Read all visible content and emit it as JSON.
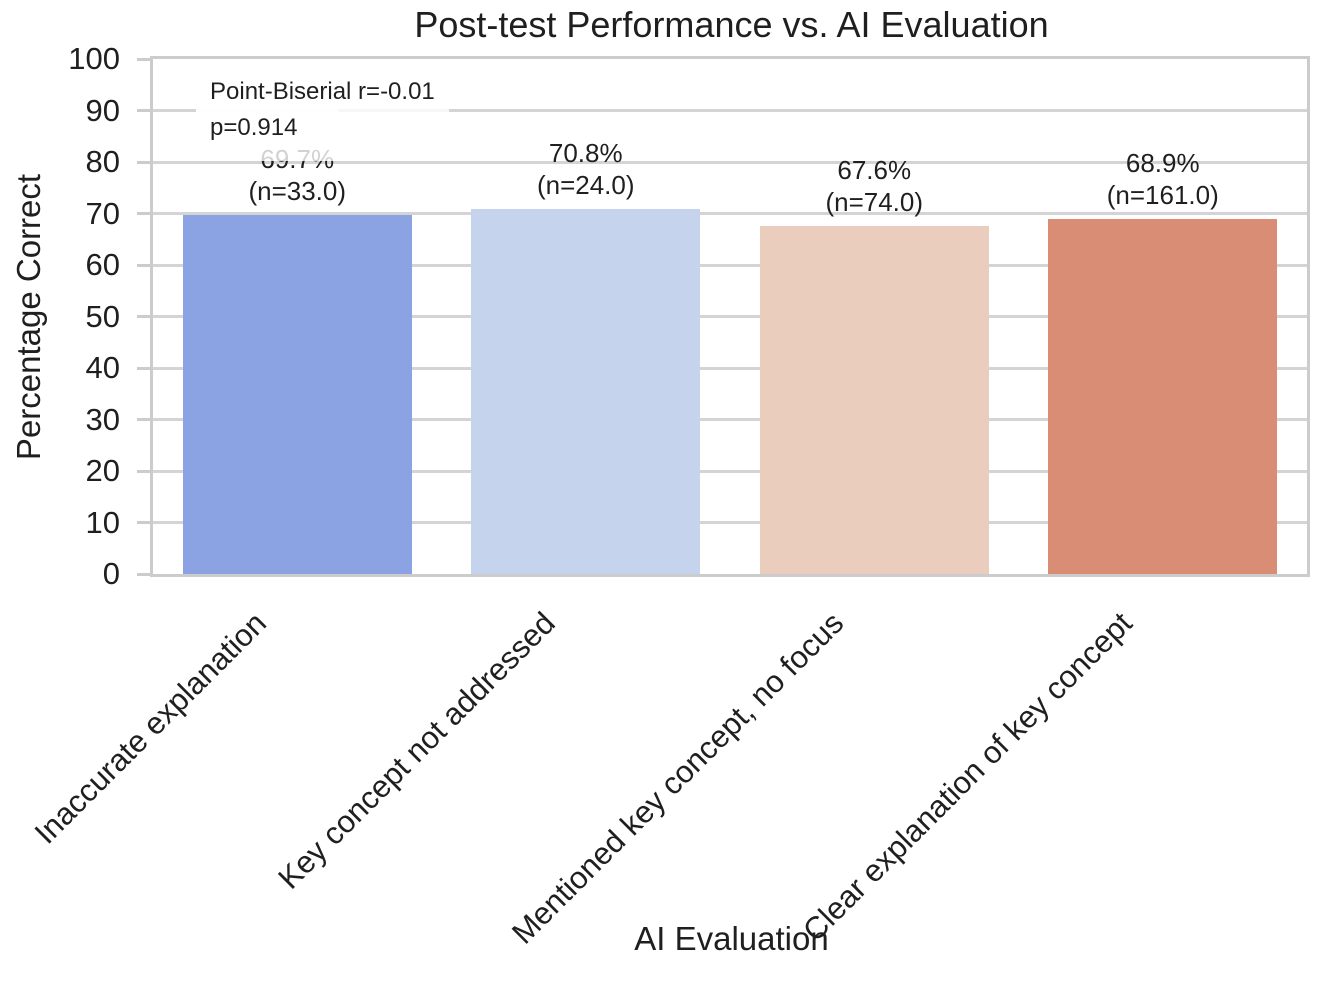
{
  "chart_data": {
    "type": "bar",
    "title": "Post-test Performance vs. AI Evaluation",
    "xlabel": "AI Evaluation",
    "ylabel": "Percentage Correct",
    "categories": [
      "Inaccurate explanation",
      "Key concept not addressed",
      "Mentioned key concept, no focus",
      "Clear explanation of key concept"
    ],
    "values": [
      69.7,
      70.8,
      67.6,
      68.9
    ],
    "counts": [
      33.0,
      24.0,
      74.0,
      161.0
    ],
    "value_labels": [
      "69.7%",
      "70.8%",
      "67.6%",
      "68.9%"
    ],
    "count_labels": [
      "(n=33.0)",
      "(n=24.0)",
      "(n=74.0)",
      "(n=161.0)"
    ],
    "bar_colors": [
      "#8CA3E3",
      "#C6D3ED",
      "#EACDBC",
      "#D98D74"
    ],
    "y_ticks": [
      0,
      10,
      20,
      30,
      40,
      50,
      60,
      70,
      80,
      90,
      100
    ],
    "ylim": [
      0,
      100
    ],
    "grid": "horizontal",
    "legend": null,
    "annotation": {
      "line1": "Point-Biserial r=-0.01",
      "line2": "p=0.914"
    }
  },
  "colors": {
    "grid": "#D4D4D4",
    "spine": "#CCCCCC",
    "text": "#1F1F1F",
    "annotation_bg": "rgba(255,255,255,0.8)"
  }
}
